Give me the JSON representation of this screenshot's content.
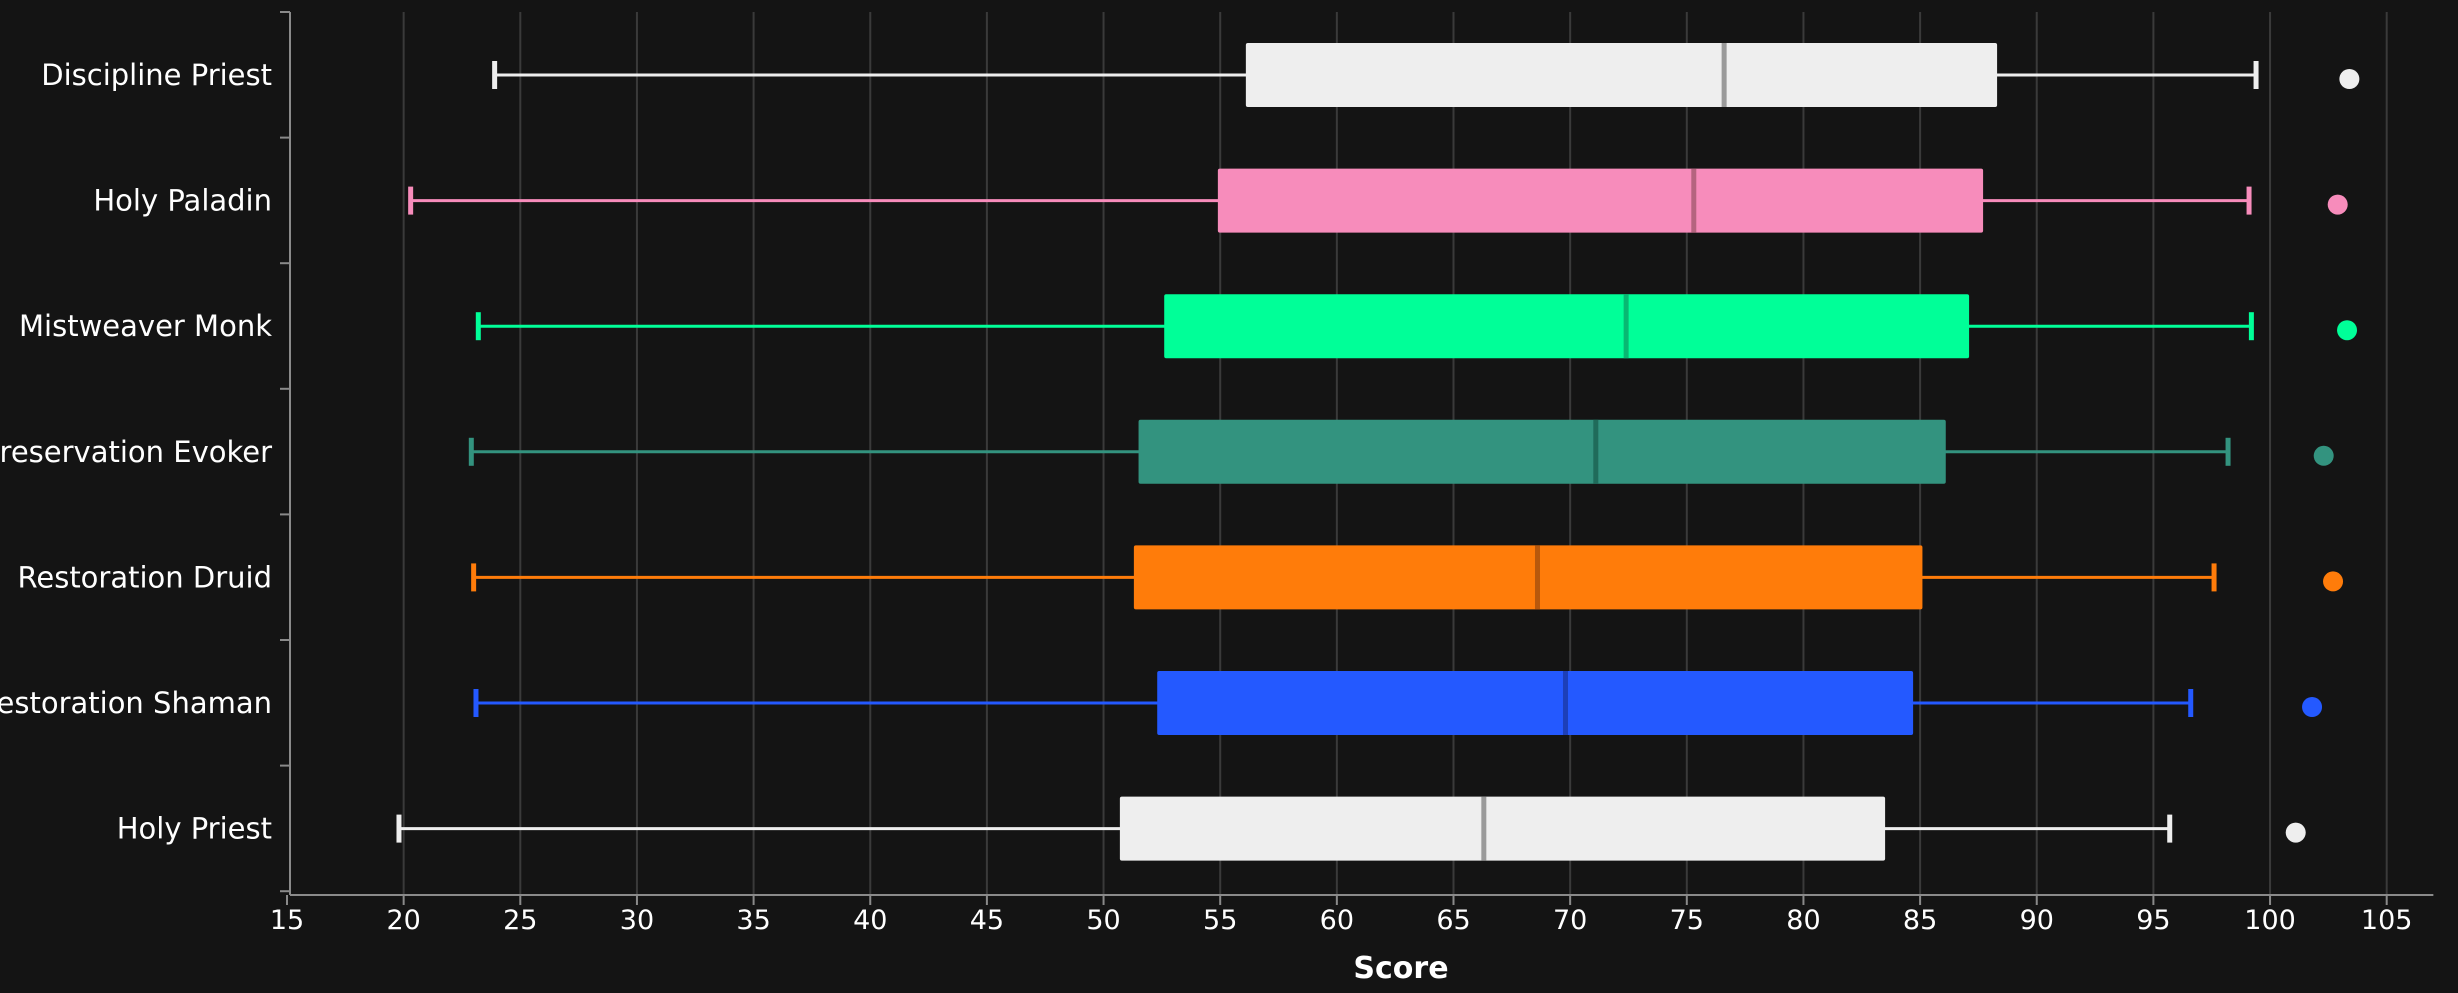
{
  "chart_data": {
    "type": "boxplot",
    "xlabel": "Score",
    "ylabel": "",
    "xlim": [
      15,
      107
    ],
    "xticks": [
      15,
      20,
      25,
      30,
      35,
      40,
      45,
      50,
      55,
      60,
      65,
      70,
      75,
      80,
      85,
      90,
      95,
      100,
      105
    ],
    "grid": true,
    "series": [
      {
        "name": "Discipline Priest",
        "color": "#eeeeee",
        "median_color": "#9a9a9a",
        "whisker_low": 23.9,
        "q1": 56.1,
        "median": 76.6,
        "q3": 88.3,
        "whisker_high": 99.4,
        "outlier": 103.4
      },
      {
        "name": "Holy Paladin",
        "color": "#f78cbb",
        "median_color": "#b5647f",
        "whisker_low": 20.3,
        "q1": 54.9,
        "median": 75.3,
        "q3": 87.7,
        "whisker_high": 99.1,
        "outlier": 102.9
      },
      {
        "name": "Mistweaver Monk",
        "color": "#00ff98",
        "median_color": "#08b872",
        "whisker_low": 23.2,
        "q1": 52.6,
        "median": 72.4,
        "q3": 87.1,
        "whisker_high": 99.2,
        "outlier": 103.3
      },
      {
        "name": "Preservation Evoker",
        "color": "#33937f",
        "median_color": "#1f6b5a",
        "whisker_low": 22.9,
        "q1": 51.5,
        "median": 71.1,
        "q3": 86.1,
        "whisker_high": 98.2,
        "outlier": 102.3
      },
      {
        "name": "Restoration Druid",
        "color": "#ff7c0a",
        "median_color": "#b8580c",
        "whisker_low": 23.0,
        "q1": 51.3,
        "median": 68.6,
        "q3": 85.1,
        "whisker_high": 97.6,
        "outlier": 102.7
      },
      {
        "name": "Restoration Shaman",
        "color": "#2459ff",
        "median_color": "#1d3fb8",
        "whisker_low": 23.1,
        "q1": 52.3,
        "median": 69.8,
        "q3": 84.7,
        "whisker_high": 96.6,
        "outlier": 101.8
      },
      {
        "name": "Holy Priest",
        "color": "#eeeeee",
        "median_color": "#9a9a9a",
        "whisker_low": 19.8,
        "q1": 50.7,
        "median": 66.3,
        "q3": 83.5,
        "whisker_high": 95.7,
        "outlier": 101.1
      }
    ]
  }
}
